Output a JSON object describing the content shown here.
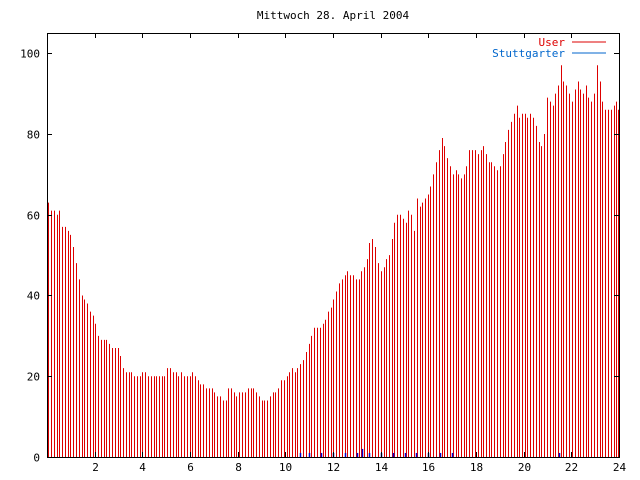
{
  "chart_data": {
    "type": "bar",
    "title": "Mittwoch 28. April 2004",
    "xlabel": "",
    "ylabel": "",
    "xlim": [
      0,
      24
    ],
    "ylim": [
      0,
      105
    ],
    "x_ticks": [
      2,
      4,
      6,
      8,
      10,
      12,
      14,
      16,
      18,
      20,
      22,
      24
    ],
    "y_ticks": [
      0,
      20,
      40,
      60,
      80,
      100
    ],
    "grid": false,
    "legend_position": "top-right",
    "series": [
      {
        "name": "User",
        "color": "#dd0000",
        "points": [
          [
            0.05,
            63
          ],
          [
            0.17,
            61
          ],
          [
            0.28,
            61
          ],
          [
            0.4,
            60
          ],
          [
            0.52,
            61
          ],
          [
            0.63,
            57
          ],
          [
            0.75,
            57
          ],
          [
            0.87,
            56
          ],
          [
            0.98,
            55
          ],
          [
            1.1,
            52
          ],
          [
            1.21,
            48
          ],
          [
            1.33,
            44
          ],
          [
            1.45,
            40
          ],
          [
            1.56,
            39
          ],
          [
            1.68,
            38
          ],
          [
            1.8,
            36
          ],
          [
            1.91,
            35
          ],
          [
            2.03,
            33
          ],
          [
            2.14,
            30
          ],
          [
            2.26,
            29
          ],
          [
            2.38,
            29
          ],
          [
            2.49,
            29
          ],
          [
            2.61,
            28
          ],
          [
            2.73,
            27
          ],
          [
            2.84,
            27
          ],
          [
            2.96,
            27
          ],
          [
            3.07,
            25
          ],
          [
            3.19,
            22
          ],
          [
            3.31,
            21
          ],
          [
            3.42,
            21
          ],
          [
            3.54,
            21
          ],
          [
            3.65,
            20
          ],
          [
            3.77,
            20
          ],
          [
            3.89,
            20
          ],
          [
            4.0,
            21
          ],
          [
            4.12,
            21
          ],
          [
            4.24,
            20
          ],
          [
            4.35,
            20
          ],
          [
            4.47,
            20
          ],
          [
            4.58,
            20
          ],
          [
            4.7,
            20
          ],
          [
            4.82,
            20
          ],
          [
            4.93,
            20
          ],
          [
            5.05,
            22
          ],
          [
            5.17,
            22
          ],
          [
            5.28,
            21
          ],
          [
            5.4,
            21
          ],
          [
            5.51,
            20
          ],
          [
            5.63,
            21
          ],
          [
            5.75,
            20
          ],
          [
            5.86,
            20
          ],
          [
            5.98,
            20
          ],
          [
            6.09,
            21
          ],
          [
            6.21,
            20
          ],
          [
            6.33,
            19
          ],
          [
            6.44,
            18
          ],
          [
            6.56,
            18
          ],
          [
            6.68,
            17
          ],
          [
            6.79,
            17
          ],
          [
            6.91,
            17
          ],
          [
            7.02,
            16
          ],
          [
            7.14,
            15
          ],
          [
            7.26,
            15
          ],
          [
            7.37,
            14
          ],
          [
            7.49,
            14
          ],
          [
            7.61,
            17
          ],
          [
            7.72,
            17
          ],
          [
            7.84,
            16
          ],
          [
            7.95,
            15
          ],
          [
            8.07,
            16
          ],
          [
            8.19,
            16
          ],
          [
            8.3,
            16
          ],
          [
            8.42,
            17
          ],
          [
            8.54,
            17
          ],
          [
            8.65,
            17
          ],
          [
            8.77,
            16
          ],
          [
            8.88,
            15
          ],
          [
            9.0,
            14
          ],
          [
            9.12,
            14
          ],
          [
            9.23,
            14
          ],
          [
            9.35,
            15
          ],
          [
            9.47,
            16
          ],
          [
            9.58,
            16
          ],
          [
            9.7,
            17
          ],
          [
            9.81,
            19
          ],
          [
            9.93,
            19
          ],
          [
            10.05,
            20
          ],
          [
            10.16,
            21
          ],
          [
            10.28,
            22
          ],
          [
            10.4,
            21
          ],
          [
            10.51,
            22
          ],
          [
            10.63,
            23
          ],
          [
            10.74,
            24
          ],
          [
            10.86,
            26
          ],
          [
            10.98,
            28
          ],
          [
            11.09,
            30
          ],
          [
            11.21,
            32
          ],
          [
            11.33,
            32
          ],
          [
            11.44,
            32
          ],
          [
            11.56,
            33
          ],
          [
            11.67,
            34
          ],
          [
            11.79,
            36
          ],
          [
            11.91,
            37
          ],
          [
            12.02,
            39
          ],
          [
            12.14,
            41
          ],
          [
            12.26,
            43
          ],
          [
            12.37,
            44
          ],
          [
            12.49,
            45
          ],
          [
            12.6,
            46
          ],
          [
            12.72,
            45
          ],
          [
            12.84,
            45
          ],
          [
            12.95,
            44
          ],
          [
            13.07,
            44
          ],
          [
            13.19,
            46
          ],
          [
            13.3,
            47
          ],
          [
            13.42,
            49
          ],
          [
            13.53,
            53
          ],
          [
            13.65,
            54
          ],
          [
            13.77,
            52
          ],
          [
            13.88,
            48
          ],
          [
            14.0,
            46
          ],
          [
            14.12,
            47
          ],
          [
            14.23,
            49
          ],
          [
            14.35,
            50
          ],
          [
            14.47,
            54
          ],
          [
            14.58,
            58
          ],
          [
            14.7,
            60
          ],
          [
            14.81,
            60
          ],
          [
            14.93,
            59
          ],
          [
            15.05,
            58
          ],
          [
            15.16,
            61
          ],
          [
            15.28,
            60
          ],
          [
            15.4,
            56
          ],
          [
            15.51,
            64
          ],
          [
            15.63,
            62
          ],
          [
            15.74,
            63
          ],
          [
            15.86,
            64
          ],
          [
            15.98,
            65
          ],
          [
            16.09,
            67
          ],
          [
            16.21,
            70
          ],
          [
            16.33,
            73
          ],
          [
            16.44,
            76
          ],
          [
            16.56,
            79
          ],
          [
            16.67,
            77
          ],
          [
            16.79,
            74
          ],
          [
            16.91,
            72
          ],
          [
            17.02,
            70
          ],
          [
            17.14,
            71
          ],
          [
            17.26,
            70
          ],
          [
            17.37,
            69
          ],
          [
            17.49,
            70
          ],
          [
            17.6,
            72
          ],
          [
            17.72,
            76
          ],
          [
            17.84,
            76
          ],
          [
            17.95,
            76
          ],
          [
            18.07,
            75
          ],
          [
            18.19,
            76
          ],
          [
            18.3,
            77
          ],
          [
            18.42,
            75
          ],
          [
            18.53,
            73
          ],
          [
            18.65,
            73
          ],
          [
            18.77,
            72
          ],
          [
            18.88,
            71
          ],
          [
            19.0,
            72
          ],
          [
            19.12,
            75
          ],
          [
            19.23,
            78
          ],
          [
            19.35,
            81
          ],
          [
            19.47,
            83
          ],
          [
            19.58,
            85
          ],
          [
            19.7,
            87
          ],
          [
            19.81,
            84
          ],
          [
            19.93,
            85
          ],
          [
            20.05,
            85
          ],
          [
            20.16,
            84
          ],
          [
            20.28,
            85
          ],
          [
            20.4,
            84
          ],
          [
            20.51,
            82
          ],
          [
            20.63,
            78
          ],
          [
            20.74,
            77
          ],
          [
            20.86,
            80
          ],
          [
            20.98,
            89
          ],
          [
            21.09,
            88
          ],
          [
            21.21,
            87
          ],
          [
            21.33,
            90
          ],
          [
            21.44,
            92
          ],
          [
            21.56,
            97
          ],
          [
            21.67,
            93
          ],
          [
            21.79,
            92
          ],
          [
            21.91,
            90
          ],
          [
            22.02,
            88
          ],
          [
            22.14,
            91
          ],
          [
            22.26,
            93
          ],
          [
            22.37,
            91
          ],
          [
            22.49,
            90
          ],
          [
            22.6,
            92
          ],
          [
            22.72,
            89
          ],
          [
            22.84,
            88
          ],
          [
            22.95,
            90
          ],
          [
            23.07,
            97
          ],
          [
            23.19,
            93
          ],
          [
            23.3,
            88
          ],
          [
            23.42,
            86
          ],
          [
            23.53,
            86
          ],
          [
            23.65,
            86
          ],
          [
            23.77,
            87
          ],
          [
            23.88,
            88
          ],
          [
            23.95,
            86
          ],
          [
            23.95,
            80
          ],
          [
            23.95,
            78
          ],
          [
            23.95,
            76
          ]
        ]
      },
      {
        "name": "Stuttgarter",
        "color": "#0000cc",
        "points": [
          [
            10.6,
            1
          ],
          [
            11.0,
            1
          ],
          [
            11.5,
            1
          ],
          [
            12.0,
            1
          ],
          [
            12.5,
            1
          ],
          [
            13.0,
            1
          ],
          [
            13.5,
            1
          ],
          [
            14.0,
            1
          ],
          [
            14.5,
            1
          ],
          [
            15.0,
            1
          ],
          [
            15.5,
            1
          ],
          [
            16.0,
            1
          ],
          [
            16.5,
            1
          ],
          [
            17.0,
            1
          ],
          [
            13.2,
            2
          ],
          [
            21.5,
            1
          ]
        ]
      }
    ]
  }
}
